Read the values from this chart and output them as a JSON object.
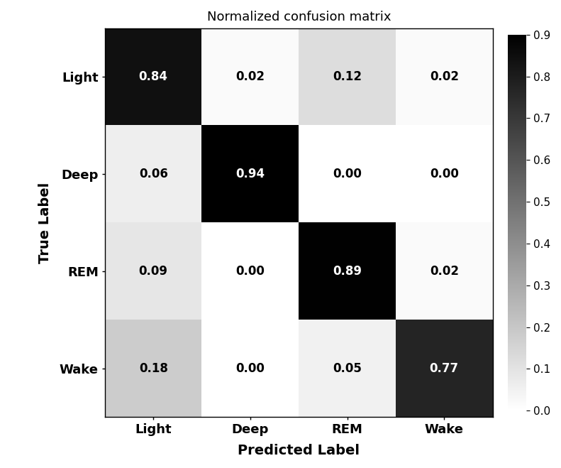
{
  "matrix": [
    [
      0.84,
      0.02,
      0.12,
      0.02
    ],
    [
      0.06,
      0.94,
      0.0,
      0.0
    ],
    [
      0.09,
      0.0,
      0.89,
      0.02
    ],
    [
      0.18,
      0.0,
      0.05,
      0.77
    ]
  ],
  "classes": [
    "Light",
    "Deep",
    "REM",
    "Wake"
  ],
  "title": "Normalized confusion matrix",
  "xlabel": "Predicted Label",
  "ylabel": "True Label",
  "cmap": "binary",
  "vmin": 0.0,
  "vmax": 0.9,
  "colorbar_ticks": [
    0.0,
    0.1,
    0.2,
    0.3,
    0.4,
    0.5,
    0.6,
    0.7,
    0.8,
    0.9
  ],
  "thresh": 0.5,
  "dark_text_color": "white",
  "light_text_color": "black",
  "title_fontsize": 13,
  "label_fontsize": 14,
  "tick_fontsize": 13,
  "cell_fontsize": 12,
  "figwidth": 7.91,
  "figheight": 6.59,
  "dpi": 100
}
